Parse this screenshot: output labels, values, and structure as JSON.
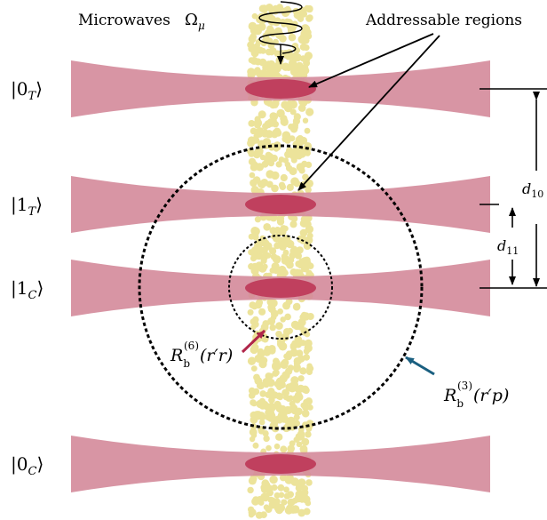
{
  "header": {
    "microwaves_label": "Microwaves",
    "omega_symbol": "Ω",
    "omega_sub": "μ",
    "regions_label": "Addressable regions"
  },
  "beams": [
    {
      "id": "0T",
      "ket_digit": "0",
      "ket_sub": "T"
    },
    {
      "id": "1T",
      "ket_digit": "1",
      "ket_sub": "T"
    },
    {
      "id": "1C",
      "ket_digit": "1",
      "ket_sub": "C"
    },
    {
      "id": "0C",
      "ket_digit": "0",
      "ket_sub": "C"
    }
  ],
  "distances": {
    "d10": {
      "base": "d",
      "sub": "10"
    },
    "d11": {
      "base": "d",
      "sub": "11"
    }
  },
  "radii": {
    "inner": {
      "base": "R",
      "sub": "b",
      "sup": "(6)",
      "arg": "(r′r)"
    },
    "outer": {
      "base": "R",
      "sub": "b",
      "sup": "(3)",
      "arg": "(r′p)"
    }
  },
  "colors": {
    "beam": "#d48a9a",
    "spot": "#c0405e",
    "atoms": "#ece39a",
    "arrow_inner": "#b0264a",
    "arrow_outer": "#1a5f80",
    "ink": "#000000"
  }
}
